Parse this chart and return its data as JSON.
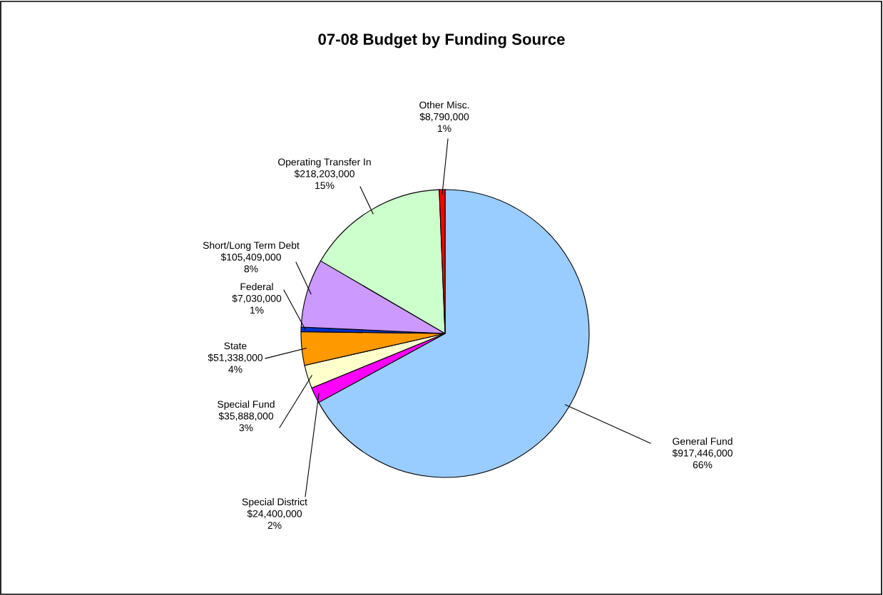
{
  "chart_data": {
    "type": "pie",
    "title": "07-08 Budget by Funding Source",
    "categories": [
      "General Fund",
      "Special District",
      "Special Fund",
      "State",
      "Federal",
      "Short/Long Term Debt",
      "Operating Transfer In",
      "Other Misc."
    ],
    "values": [
      917446000,
      24400000,
      35888000,
      51338000,
      7030000,
      105409000,
      218203000,
      8790000
    ],
    "value_labels": [
      "$917,446,000\n66%",
      "$24,400,000\n2%",
      "$35,888,000\n3%",
      "$51,338,000\n4%",
      "$7,030,000\n1%",
      "$105,409,000\n8%",
      "$218,203,000\n15%",
      "$8,790,000\n1%"
    ],
    "colors": [
      "#99ccff",
      "#ff00ff",
      "#ffffcc",
      "#ff9900",
      "#0033cc",
      "#cc99ff",
      "#ccffcc",
      "#ff0000"
    ],
    "legend": false
  }
}
